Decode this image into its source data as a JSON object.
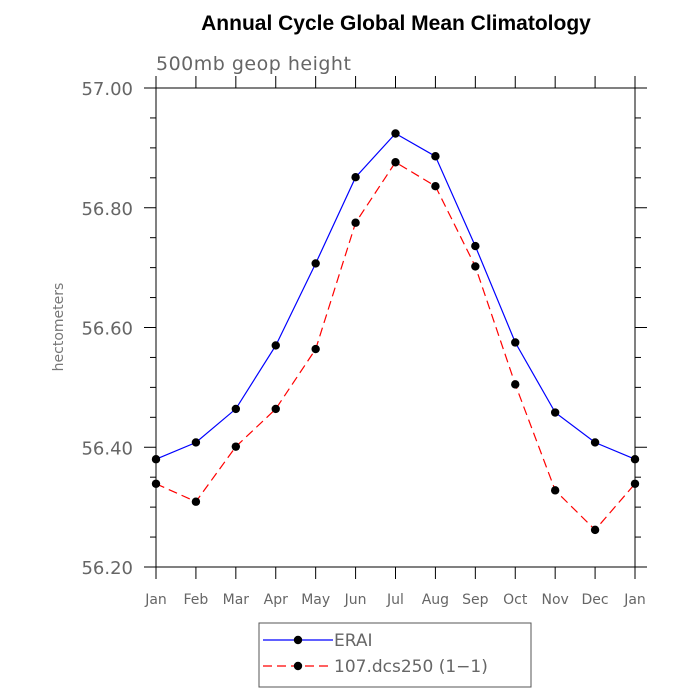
{
  "chart_data": {
    "type": "line",
    "title": "Annual Cycle Global Mean Climatology",
    "subtitle": "500mb geop height",
    "xlabel": "",
    "ylabel": "hectometers",
    "categories": [
      "Jan",
      "Feb",
      "Mar",
      "Apr",
      "May",
      "Jun",
      "Jul",
      "Aug",
      "Sep",
      "Oct",
      "Nov",
      "Dec",
      "Jan"
    ],
    "ylim": [
      56.2,
      57.0
    ],
    "yticks": [
      "56.20",
      "56.40",
      "56.60",
      "56.80",
      "57.00"
    ],
    "grid": false,
    "legend_position": "bottom",
    "series": [
      {
        "name": "ERAI",
        "color": "#0000ff",
        "dash": "solid",
        "marker": "filled-circle",
        "values": [
          56.38,
          56.408,
          56.464,
          56.57,
          56.707,
          56.851,
          56.924,
          56.886,
          56.736,
          56.575,
          56.458,
          56.408,
          56.38
        ]
      },
      {
        "name": "107.dcs250 (1−1)",
        "color": "#ff0000",
        "dash": "dashed",
        "marker": "filled-circle",
        "values": [
          56.339,
          56.309,
          56.401,
          56.464,
          56.564,
          56.775,
          56.876,
          56.836,
          56.702,
          56.505,
          56.328,
          56.262,
          56.339
        ]
      }
    ]
  }
}
